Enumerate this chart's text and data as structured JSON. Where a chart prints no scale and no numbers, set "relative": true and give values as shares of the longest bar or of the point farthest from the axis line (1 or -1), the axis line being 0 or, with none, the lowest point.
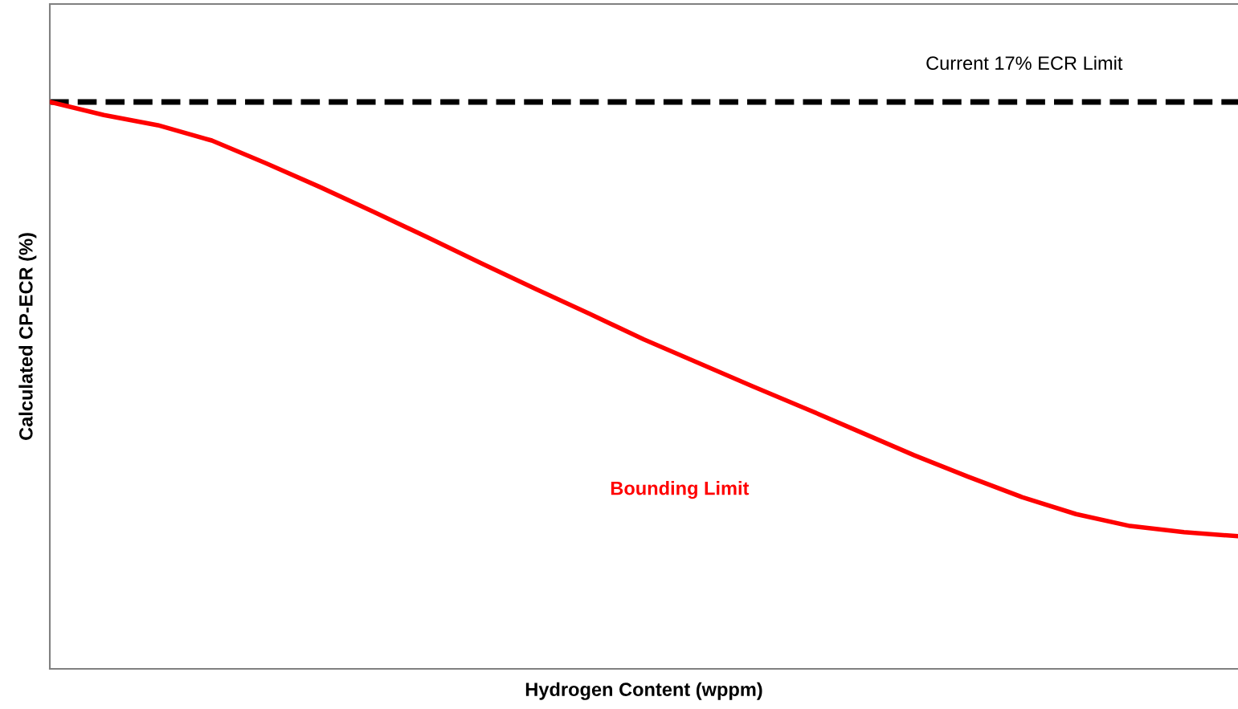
{
  "chart_data": {
    "type": "line",
    "relative": true,
    "xlabel": "Hydrogen Content (wppm)",
    "ylabel": "Calculated CP-ECR (%)",
    "categories": [
      null,
      null,
      null,
      null,
      null,
      null,
      null,
      null,
      null,
      null,
      null,
      null,
      null,
      null,
      null,
      null,
      null,
      null,
      null,
      null,
      null,
      null,
      null
    ],
    "series": [
      {
        "name": "Bounding Limit",
        "color": "#ff0000",
        "values": [
          1,
          0.977,
          0.959,
          0.932,
          0.892,
          0.85,
          0.806,
          0.761,
          0.715,
          0.67,
          0.626,
          0.581,
          0.54,
          0.499,
          0.459,
          0.418,
          0.377,
          0.339,
          0.303,
          0.273,
          0.252,
          0.241,
          0.234
        ]
      }
    ],
    "ref_lines": [
      {
        "axis": "y",
        "value": 1,
        "label": "Current 17% ECR Limit",
        "color": "#000000",
        "line_style": "dashed"
      }
    ],
    "grid": false,
    "legend": false,
    "tick_labels": false,
    "marker": "none",
    "line_style": "solid"
  }
}
